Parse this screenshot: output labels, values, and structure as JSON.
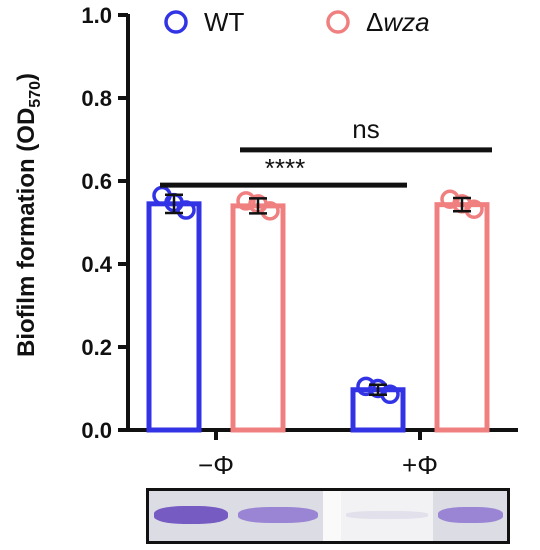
{
  "chart_data": {
    "type": "bar",
    "ylabel": "Biofilm formation (OD570)",
    "ylabel_main": "Biofilm formation (OD",
    "ylabel_sub": "570",
    "ylabel_close": ")",
    "ylim": [
      0,
      1.0
    ],
    "yticks": [
      "0.0",
      "0.2",
      "0.4",
      "0.6",
      "0.8",
      "1.0"
    ],
    "categories": [
      "−Φ",
      "+Φ"
    ],
    "series": [
      {
        "name": "WT",
        "color": "#3333e6",
        "values": [
          0.545,
          0.097
        ],
        "error": [
          0.022,
          0.012
        ],
        "points": [
          [
            0.565,
            0.548,
            0.53
          ],
          [
            0.105,
            0.1,
            0.086
          ]
        ]
      },
      {
        "name": "Δwza",
        "color": "#f08080",
        "values": [
          0.54,
          0.543
        ],
        "error": [
          0.018,
          0.016
        ],
        "points": [
          [
            0.552,
            0.545,
            0.528
          ],
          [
            0.556,
            0.545,
            0.532
          ]
        ]
      }
    ],
    "legend": {
      "position": "top",
      "entries": [
        {
          "delta": "",
          "text": "WT",
          "italic": false
        },
        {
          "delta": "Δ",
          "text": "wza",
          "italic": true
        }
      ]
    },
    "significance": [
      {
        "label": "****",
        "y": 0.59
      },
      {
        "label": "ns",
        "y": 0.675
      }
    ],
    "grid": false
  },
  "image_strip": {
    "wells": [
      {
        "name": "WT −Φ",
        "color": "#6a4bbf",
        "stain_level": 0.9
      },
      {
        "name": "Δwza −Φ",
        "color": "#8a6fd0",
        "stain_level": 0.75
      },
      {
        "name": "WT +Φ",
        "color": "#c9c7e0",
        "stain_level": 0.1
      },
      {
        "name": "Δwza +Φ",
        "color": "#8a6fd0",
        "stain_level": 0.75
      }
    ]
  }
}
